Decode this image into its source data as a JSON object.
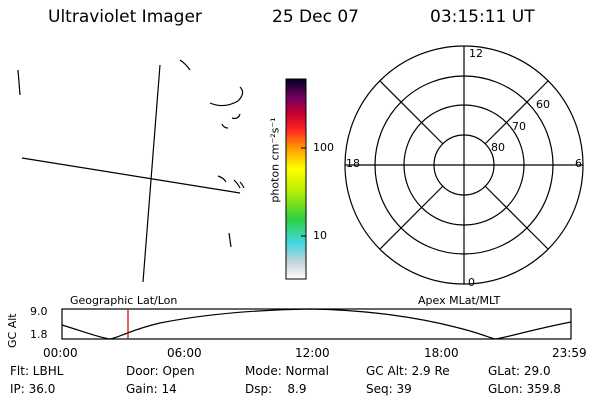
{
  "header": {
    "instrument": "Ultraviolet Imager",
    "date": "25 Dec 07",
    "time": "03:15:11 UT"
  },
  "colorbar": {
    "label": "photon cm⁻²s⁻¹",
    "ticks": [
      "100",
      "10"
    ]
  },
  "polar_plot": {
    "mlt_labels": {
      "top": "12",
      "left": "18",
      "right": "6",
      "bottom": "0"
    },
    "lat_labels": [
      "60",
      "70",
      "80"
    ]
  },
  "orbit": {
    "left_title": "Geographic Lat/Lon",
    "right_title": "Apex MLat/MLT",
    "axis_label": "GC Alt",
    "y_ticks": [
      "9.0",
      "1.8"
    ],
    "x_ticks": [
      "00:00",
      "06:00",
      "12:00",
      "18:00",
      "23:59"
    ]
  },
  "info": {
    "flt": "Flt: LBHL",
    "door": "Door: Open",
    "mode": "Mode: Normal",
    "gc_alt": "GC Alt: 2.9 Re",
    "glat": "GLat:  29.0",
    "ip": "IP: 36.0",
    "gain": "Gain: 14",
    "dsp": "Dsp:    8.9",
    "seq": "Seq: 39",
    "glon": "GLon: 359.8"
  },
  "colors": {
    "marker": "#cc0000"
  }
}
